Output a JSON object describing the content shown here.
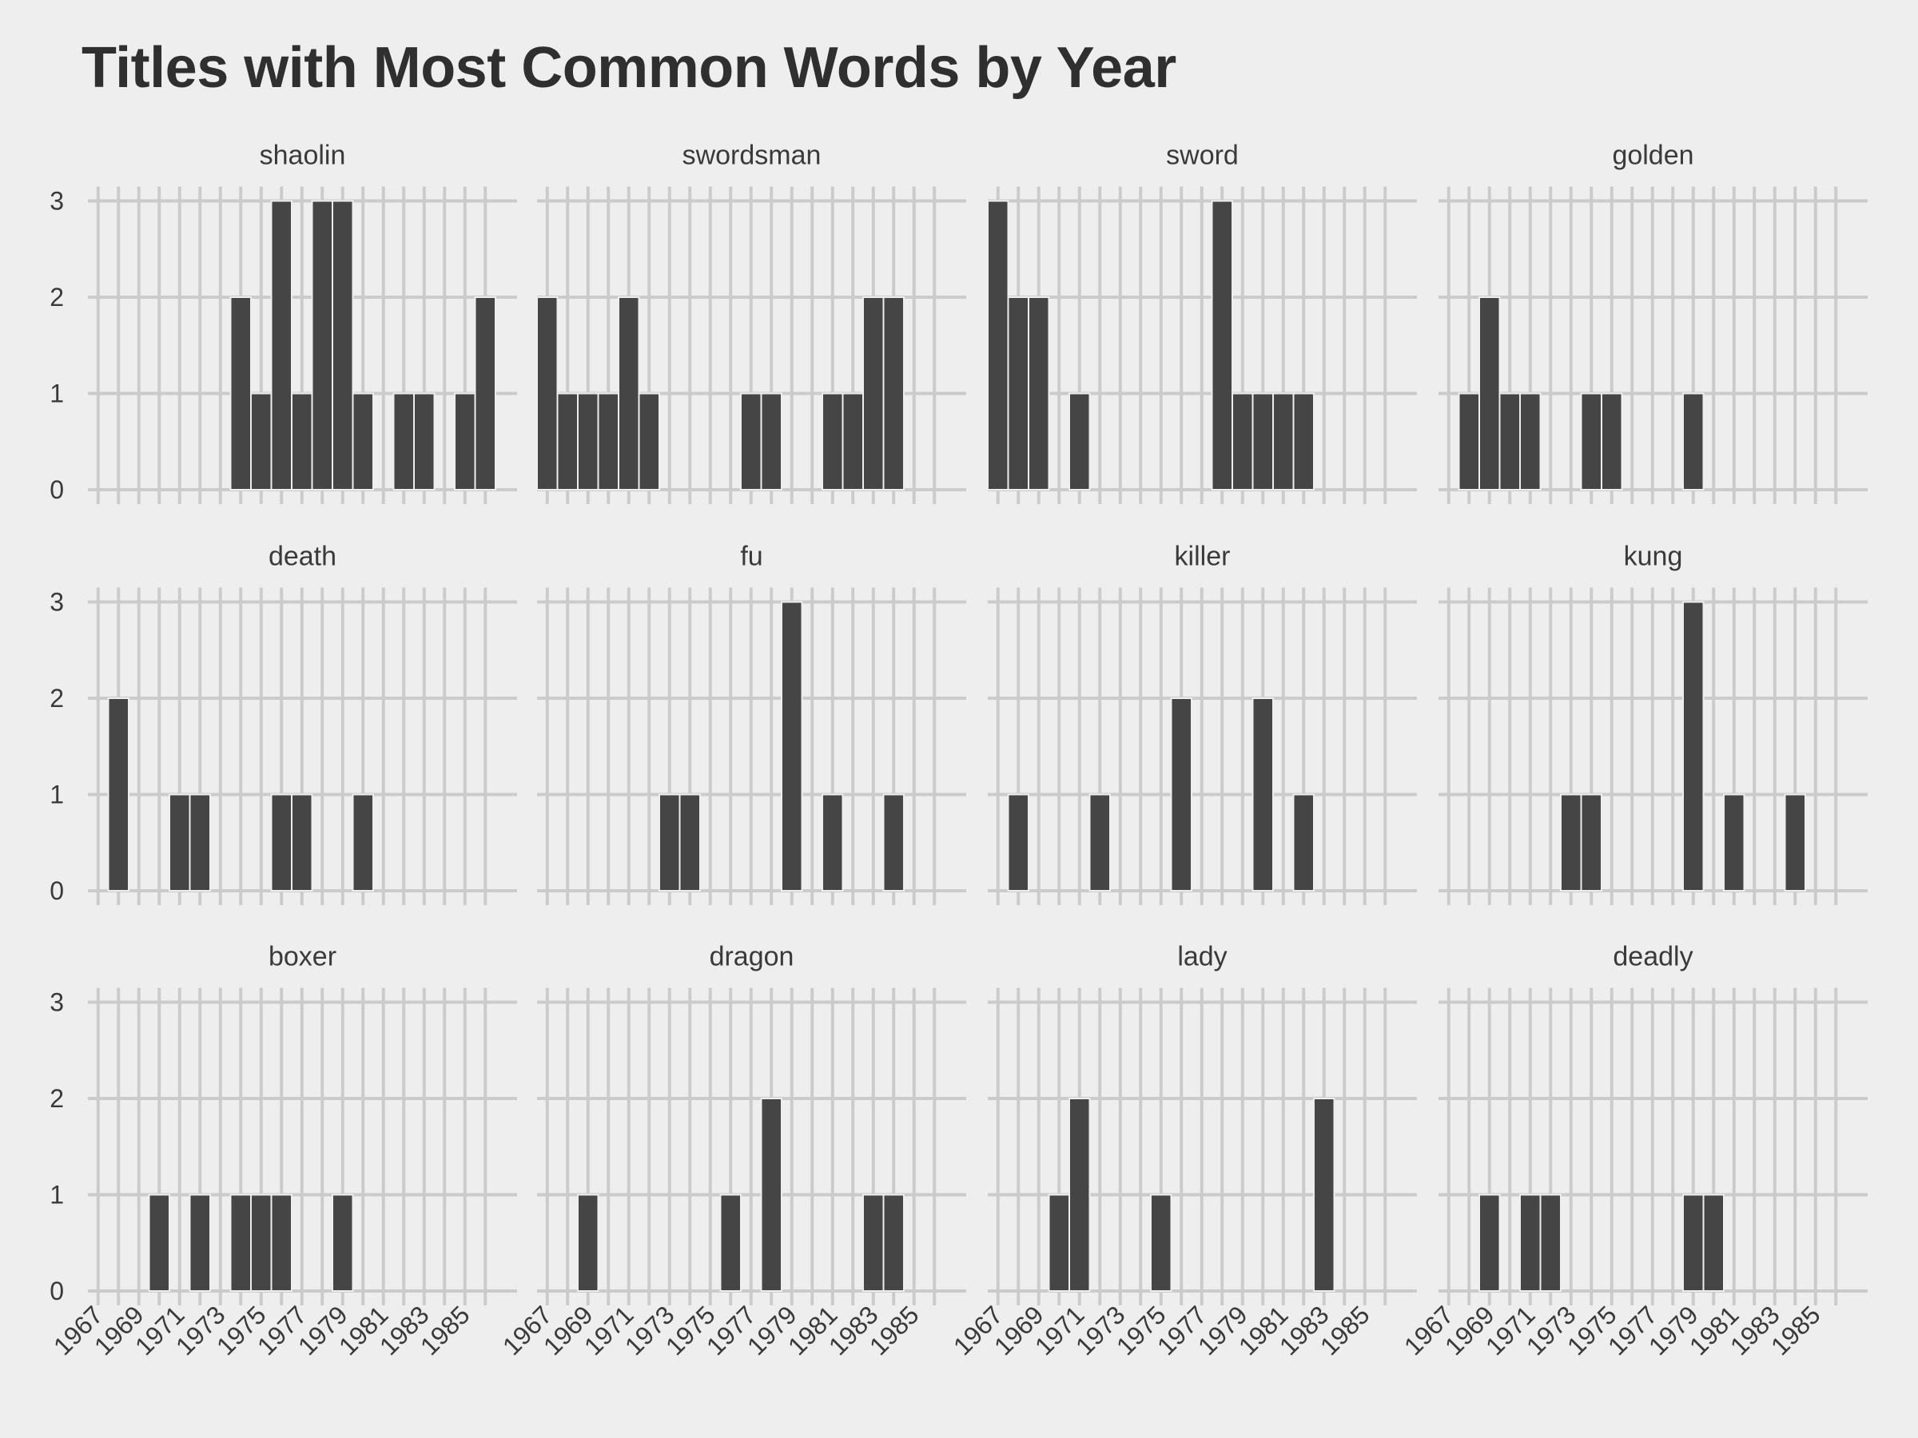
{
  "chart_data": {
    "type": "bar",
    "title": "Titles with Most Common Words by Year",
    "xlabel": "",
    "ylabel": "",
    "ylim": [
      0,
      3
    ],
    "y_ticks": [
      "0",
      "1",
      "2",
      "3"
    ],
    "x_range": [
      1967,
      1986
    ],
    "x_ticks": [
      "1967",
      "1969",
      "1971",
      "1973",
      "1975",
      "1977",
      "1979",
      "1981",
      "1983",
      "1985"
    ],
    "grid": true,
    "legend": "none",
    "bar_color": "#454545",
    "grid_color": "#cbcbcb",
    "background": "#eeeeee",
    "facets": [
      {
        "name": "shaolin",
        "x": [
          1974,
          1975,
          1976,
          1977,
          1978,
          1979,
          1980,
          1982,
          1983,
          1985,
          1986
        ],
        "values": [
          2,
          1,
          3,
          1,
          3,
          3,
          1,
          1,
          1,
          1,
          2
        ]
      },
      {
        "name": "swordsman",
        "x": [
          1967,
          1968,
          1969,
          1970,
          1971,
          1972,
          1977,
          1978,
          1981,
          1982,
          1983,
          1984
        ],
        "values": [
          2,
          1,
          1,
          1,
          2,
          1,
          1,
          1,
          1,
          1,
          2,
          2
        ]
      },
      {
        "name": "sword",
        "x": [
          1967,
          1968,
          1969,
          1971,
          1978,
          1979,
          1980,
          1981,
          1982
        ],
        "values": [
          3,
          2,
          2,
          1,
          3,
          1,
          1,
          1,
          1
        ]
      },
      {
        "name": "golden",
        "x": [
          1968,
          1969,
          1970,
          1971,
          1974,
          1975,
          1979
        ],
        "values": [
          1,
          2,
          1,
          1,
          1,
          1,
          1
        ]
      },
      {
        "name": "death",
        "x": [
          1968,
          1971,
          1972,
          1976,
          1977,
          1980
        ],
        "values": [
          2,
          1,
          1,
          1,
          1,
          1
        ]
      },
      {
        "name": "fu",
        "x": [
          1973,
          1974,
          1979,
          1981,
          1984
        ],
        "values": [
          1,
          1,
          3,
          1,
          1
        ]
      },
      {
        "name": "killer",
        "x": [
          1968,
          1972,
          1976,
          1980,
          1982
        ],
        "values": [
          1,
          1,
          2,
          2,
          1
        ]
      },
      {
        "name": "kung",
        "x": [
          1973,
          1974,
          1979,
          1981,
          1984
        ],
        "values": [
          1,
          1,
          3,
          1,
          1
        ]
      },
      {
        "name": "boxer",
        "x": [
          1970,
          1972,
          1974,
          1975,
          1976,
          1979
        ],
        "values": [
          1,
          1,
          1,
          1,
          1,
          1
        ]
      },
      {
        "name": "dragon",
        "x": [
          1969,
          1976,
          1978,
          1983,
          1984
        ],
        "values": [
          1,
          1,
          2,
          1,
          1
        ]
      },
      {
        "name": "lady",
        "x": [
          1970,
          1971,
          1975,
          1983
        ],
        "values": [
          1,
          2,
          1,
          2
        ]
      },
      {
        "name": "deadly",
        "x": [
          1969,
          1971,
          1972,
          1979,
          1980
        ],
        "values": [
          1,
          1,
          1,
          1,
          1
        ]
      }
    ]
  }
}
